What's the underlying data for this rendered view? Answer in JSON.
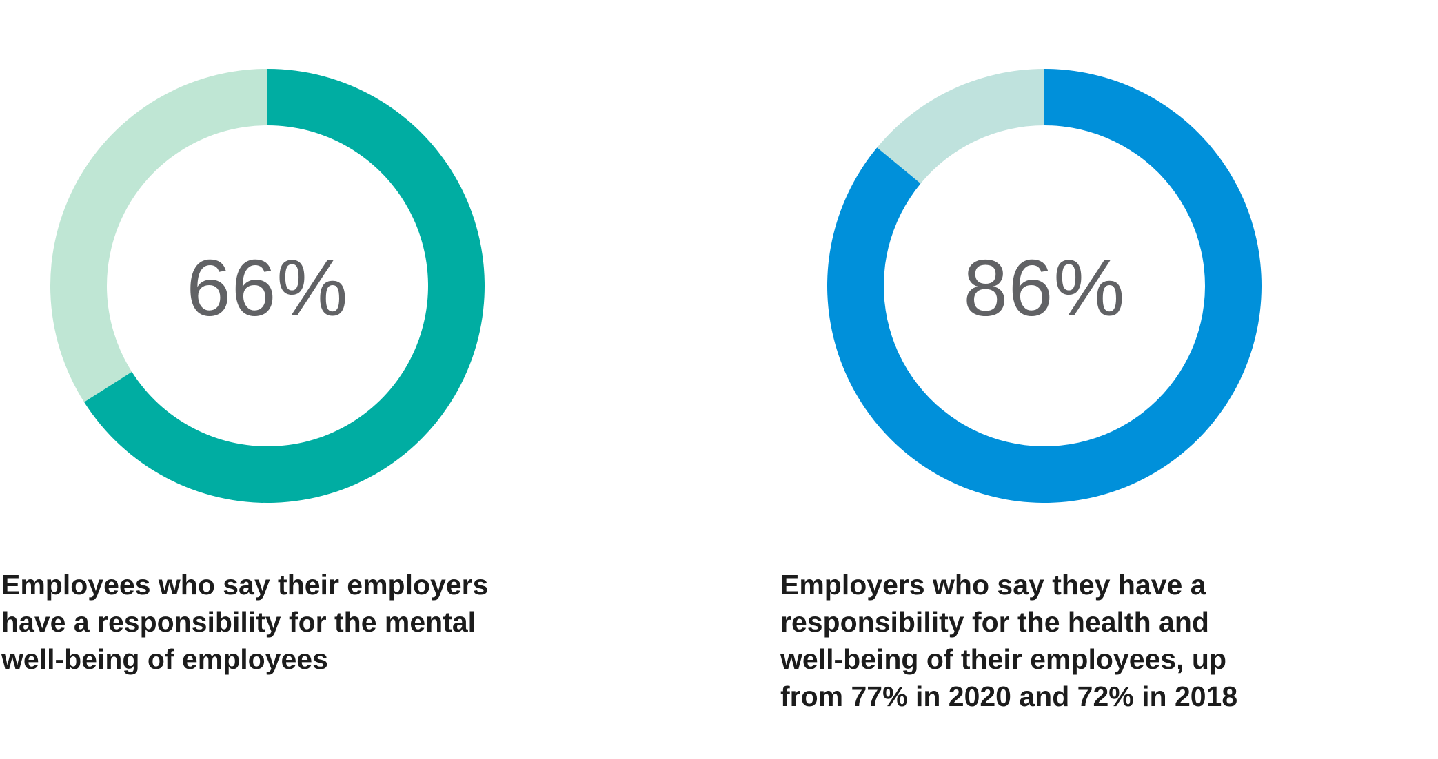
{
  "chart_data": [
    {
      "type": "pie",
      "variant": "donut",
      "value_percent": 66,
      "center_label": "66%",
      "caption_lines": [
        "Employees who say their employers",
        "have a responsibility for the mental",
        "well-being of employees"
      ],
      "colors": {
        "value": "#00ADA2",
        "remainder": "#BFE6D4"
      }
    },
    {
      "type": "pie",
      "variant": "donut",
      "value_percent": 86,
      "center_label": "86%",
      "caption_lines": [
        "Employers who say they have a",
        "responsibility for the health and",
        "well-being of their employees, up",
        "from 77% in 2020 and 72% in 2018"
      ],
      "colors": {
        "value": "#0090DA",
        "remainder": "#BFE2DD"
      }
    }
  ]
}
